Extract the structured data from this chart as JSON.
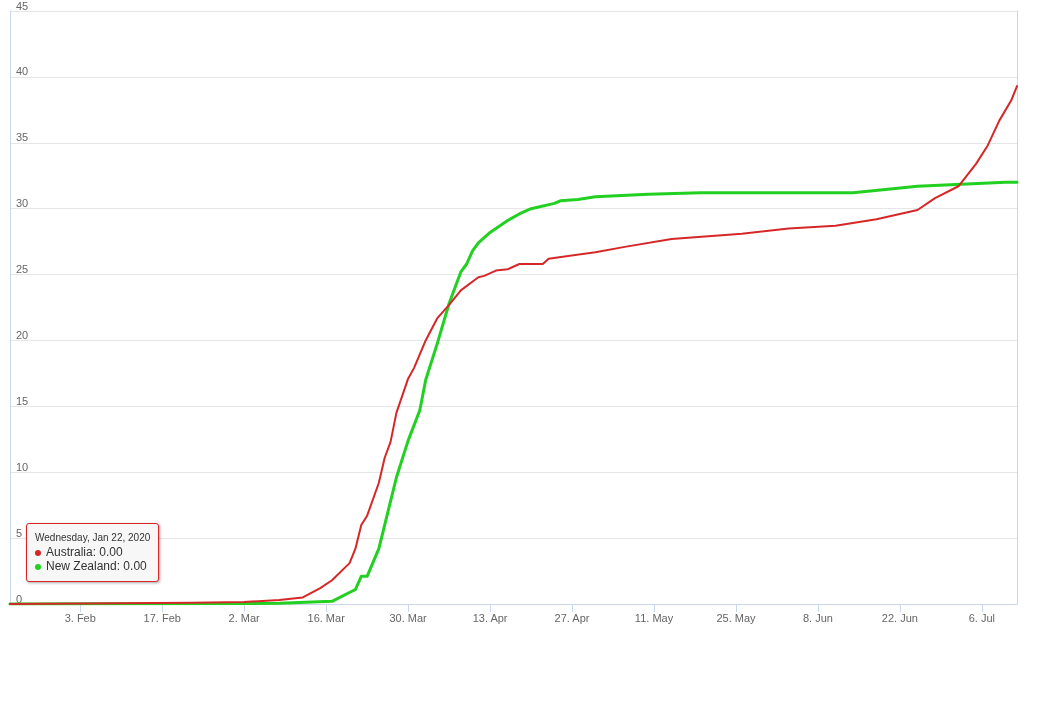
{
  "chart_data": {
    "type": "line",
    "xlim": [
      "2020-01-22",
      "2020-07-12"
    ],
    "xticks": [
      {
        "value": "2020-02-03",
        "label": "3. Feb"
      },
      {
        "value": "2020-02-17",
        "label": "17. Feb"
      },
      {
        "value": "2020-03-02",
        "label": "2. Mar"
      },
      {
        "value": "2020-03-16",
        "label": "16. Mar"
      },
      {
        "value": "2020-03-30",
        "label": "30. Mar"
      },
      {
        "value": "2020-04-13",
        "label": "13. Apr"
      },
      {
        "value": "2020-04-27",
        "label": "27. Apr"
      },
      {
        "value": "2020-05-11",
        "label": "11. May"
      },
      {
        "value": "2020-05-25",
        "label": "25. May"
      },
      {
        "value": "2020-06-08",
        "label": "8. Jun"
      },
      {
        "value": "2020-06-22",
        "label": "22. Jun"
      },
      {
        "value": "2020-07-06",
        "label": "6. Jul"
      }
    ],
    "ylim": [
      0,
      45
    ],
    "yticks": [
      0,
      5,
      10,
      15,
      20,
      25,
      30,
      35,
      40,
      45
    ],
    "grid": "y",
    "marker": "none",
    "line_style": "solid",
    "annotations": [
      "Wednesday, Jan 22, 2020",
      "Australia: 0.00",
      "New Zealand: 0.00"
    ],
    "series": [
      {
        "color": "#d62728",
        "x": [
          "2020-01-22",
          "2020-02-22",
          "2020-03-02",
          "2020-03-08",
          "2020-03-12",
          "2020-03-15",
          "2020-03-17",
          "2020-03-20",
          "2020-03-21",
          "2020-03-22",
          "2020-03-23",
          "2020-03-25",
          "2020-03-26",
          "2020-03-27",
          "2020-03-28",
          "2020-03-30",
          "2020-03-31",
          "2020-04-02",
          "2020-04-04",
          "2020-04-06",
          "2020-04-08",
          "2020-04-11",
          "2020-04-12",
          "2020-04-14",
          "2020-04-16",
          "2020-04-18",
          "2020-04-22",
          "2020-04-23",
          "2020-05-01",
          "2020-05-06",
          "2020-05-14",
          "2020-05-26",
          "2020-06-03",
          "2020-06-11",
          "2020-06-18",
          "2020-06-25",
          "2020-06-28",
          "2020-07-02",
          "2020-07-05",
          "2020-07-07",
          "2020-07-09",
          "2020-07-11",
          "2020-07-12"
        ],
        "values": [
          0,
          0.1,
          0.15,
          0.3,
          0.5,
          1.2,
          1.8,
          3.1,
          4.2,
          6.0,
          6.7,
          9.2,
          11.1,
          12.3,
          14.5,
          17.1,
          17.9,
          20.0,
          21.7,
          22.7,
          23.8,
          24.8,
          24.9,
          25.3,
          25.4,
          25.8,
          25.8,
          26.2,
          26.7,
          27.1,
          27.7,
          28.1,
          28.5,
          28.7,
          29.2,
          29.9,
          30.8,
          31.7,
          33.4,
          34.8,
          36.7,
          38.2,
          39.3
        ]
      },
      {
        "color": "#22d022",
        "x": [
          "2020-01-22",
          "2020-03-08",
          "2020-03-17",
          "2020-03-21",
          "2020-03-22",
          "2020-03-23",
          "2020-03-25",
          "2020-03-28",
          "2020-03-30",
          "2020-04-01",
          "2020-04-02",
          "2020-04-04",
          "2020-04-06",
          "2020-04-08",
          "2020-04-09",
          "2020-04-10",
          "2020-04-11",
          "2020-04-13",
          "2020-04-16",
          "2020-04-18",
          "2020-04-20",
          "2020-04-24",
          "2020-04-25",
          "2020-04-28",
          "2020-05-01",
          "2020-05-10",
          "2020-05-19",
          "2020-06-14",
          "2020-06-25",
          "2020-07-10",
          "2020-07-12"
        ],
        "values": [
          0,
          0.05,
          0.2,
          1.1,
          2.1,
          2.1,
          4.2,
          9.6,
          12.4,
          14.7,
          17.0,
          19.8,
          22.8,
          25.2,
          25.8,
          26.8,
          27.4,
          28.2,
          29.1,
          29.6,
          30.0,
          30.4,
          30.6,
          30.7,
          30.9,
          31.1,
          31.2,
          31.2,
          31.7,
          32.0,
          32.0
        ]
      }
    ]
  }
}
